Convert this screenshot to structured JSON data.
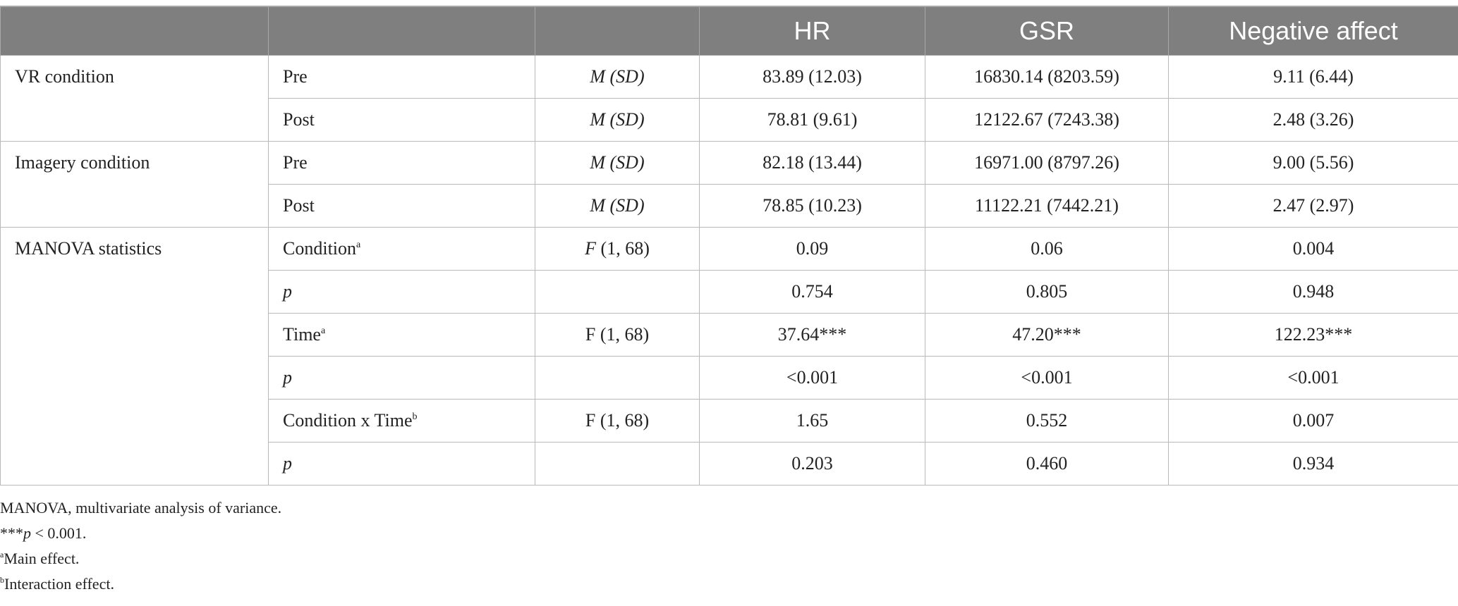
{
  "table": {
    "headers": [
      "",
      "",
      "",
      "HR",
      "GSR",
      "Negative affect"
    ],
    "groups": [
      {
        "label": "VR condition",
        "rows": [
          {
            "label": "Pre",
            "label_italic": false,
            "sup": "",
            "stat": "M (SD)",
            "stat_italic": true,
            "values": [
              "83.89 (12.03)",
              "16830.14 (8203.59)",
              "9.11 (6.44)"
            ]
          },
          {
            "label": "Post",
            "label_italic": false,
            "sup": "",
            "stat": "M (SD)",
            "stat_italic": true,
            "values": [
              "78.81 (9.61)",
              "12122.67 (7243.38)",
              "2.48 (3.26)"
            ]
          }
        ]
      },
      {
        "label": "Imagery condition",
        "rows": [
          {
            "label": "Pre",
            "label_italic": false,
            "sup": "",
            "stat": "M (SD)",
            "stat_italic": true,
            "values": [
              "82.18 (13.44)",
              "16971.00 (8797.26)",
              "9.00 (5.56)"
            ]
          },
          {
            "label": "Post",
            "label_italic": false,
            "sup": "",
            "stat": "M (SD)",
            "stat_italic": true,
            "values": [
              "78.85 (10.23)",
              "11122.21 (7442.21)",
              "2.47 (2.97)"
            ]
          }
        ]
      },
      {
        "label": "MANOVA statistics",
        "rows": [
          {
            "label": "Condition",
            "label_italic": false,
            "sup": "a",
            "stat": "F (1, 68)",
            "stat_italic": "F-only",
            "values": [
              "0.09",
              "0.06",
              "0.004"
            ]
          },
          {
            "label": "p",
            "label_italic": true,
            "sup": "",
            "stat": "",
            "stat_italic": false,
            "values": [
              "0.754",
              "0.805",
              "0.948"
            ]
          },
          {
            "label": "Time",
            "label_italic": false,
            "sup": "a",
            "stat": "F (1, 68)",
            "stat_italic": false,
            "values": [
              "37.64***",
              "47.20***",
              "122.23***"
            ]
          },
          {
            "label": "p",
            "label_italic": true,
            "sup": "",
            "stat": "",
            "stat_italic": false,
            "values": [
              "<0.001",
              "<0.001",
              "<0.001"
            ]
          },
          {
            "label": "Condition x Time",
            "label_italic": false,
            "sup": "b",
            "stat": "F (1, 68)",
            "stat_italic": false,
            "values": [
              "1.65",
              "0.552",
              "0.007"
            ]
          },
          {
            "label": "p",
            "label_italic": true,
            "sup": "",
            "stat": "",
            "stat_italic": false,
            "values": [
              "0.203",
              "0.460",
              "0.934"
            ]
          }
        ]
      }
    ]
  },
  "notes": {
    "abbrev": "MANOVA, multivariate analysis of variance.",
    "sig_prefix": "***",
    "sig_p": "p",
    "sig_rest": " < 0.001.",
    "main_sup": "a",
    "main_text": "Main effect.",
    "inter_sup": "b",
    "inter_text": "Interaction effect."
  }
}
